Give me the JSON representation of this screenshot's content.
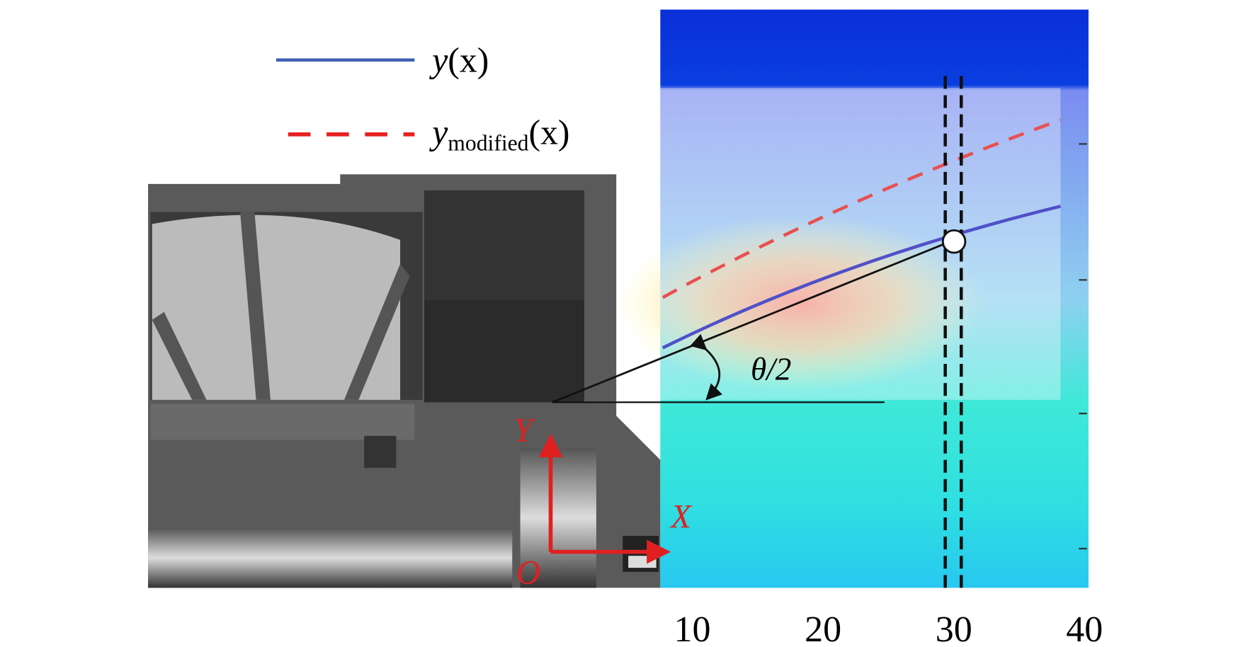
{
  "legend": [
    {
      "symbol": "y",
      "argument": "(x)"
    },
    {
      "symbol": "y",
      "subscript": "modified",
      "argument": "(x)"
    }
  ],
  "angle_label": "θ/2",
  "axes": {
    "y_label": "Y",
    "x_label": "X",
    "origin_label": "O"
  },
  "x_axis": {
    "ticks": [
      10,
      20,
      30,
      40
    ]
  }
}
